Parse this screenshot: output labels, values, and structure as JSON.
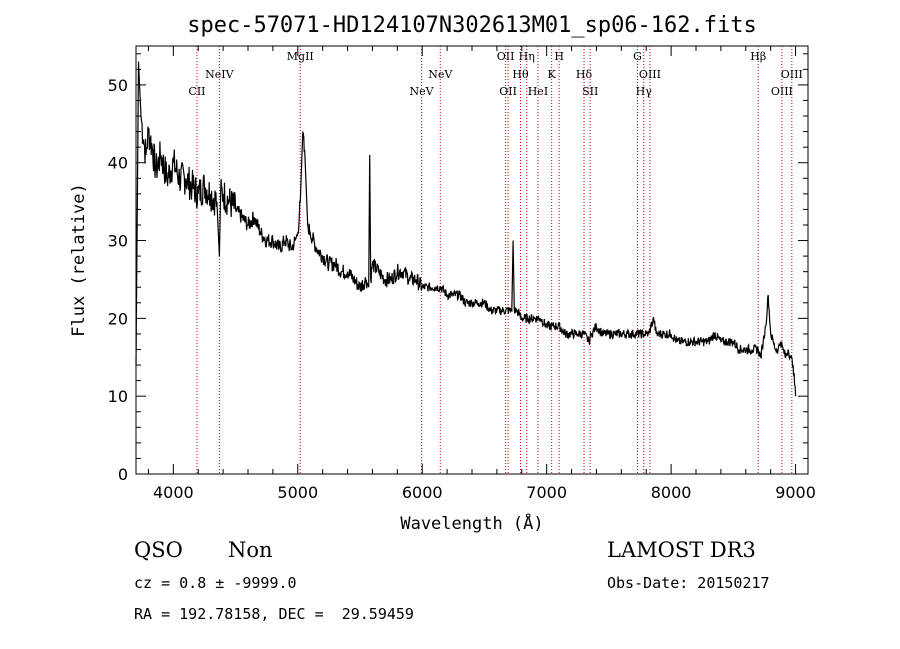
{
  "chart_data": {
    "type": "line",
    "title": "spec-57071-HD124107N302613M01_sp06-162.fits",
    "xlabel": "Wavelength (Å)",
    "ylabel": "Flux (relative)",
    "xlim": [
      3700,
      9100
    ],
    "ylim": [
      0,
      55
    ],
    "x_ticks": [
      4000,
      5000,
      6000,
      7000,
      8000,
      9000
    ],
    "y_ticks": [
      0,
      10,
      20,
      30,
      40,
      50
    ],
    "grid": false,
    "series": [
      {
        "color": "#000000",
        "x": [
          3700,
          3720,
          3740,
          3760,
          3780,
          3800,
          3830,
          3860,
          3900,
          3950,
          4000,
          4050,
          4100,
          4150,
          4200,
          4250,
          4300,
          4350,
          4370,
          4380,
          4400,
          4450,
          4500,
          4550,
          4600,
          4650,
          4700,
          4750,
          4800,
          4850,
          4900,
          4950,
          4980,
          5000,
          5020,
          5040,
          5060,
          5080,
          5100,
          5150,
          5200,
          5250,
          5300,
          5350,
          5400,
          5450,
          5500,
          5550,
          5570,
          5578,
          5586,
          5600,
          5650,
          5700,
          5750,
          5800,
          5850,
          5900,
          5950,
          6000,
          6050,
          6100,
          6150,
          6200,
          6250,
          6300,
          6350,
          6400,
          6450,
          6500,
          6550,
          6600,
          6650,
          6700,
          6720,
          6730,
          6740,
          6760,
          6800,
          6850,
          6900,
          6950,
          7000,
          7050,
          7100,
          7150,
          7200,
          7250,
          7300,
          7340,
          7360,
          7400,
          7450,
          7500,
          7550,
          7600,
          7650,
          7700,
          7750,
          7780,
          7800,
          7820,
          7840,
          7860,
          7880,
          7900,
          7950,
          8000,
          8050,
          8100,
          8150,
          8200,
          8250,
          8300,
          8350,
          8400,
          8450,
          8500,
          8550,
          8600,
          8650,
          8700,
          8720,
          8740,
          8760,
          8780,
          8800,
          8820,
          8840,
          8860,
          8880,
          8900,
          8920,
          8940,
          8960,
          8980,
          9000
        ],
        "y": [
          14,
          53,
          46,
          43,
          41,
          44,
          42,
          39,
          41,
          38,
          40,
          38,
          38,
          37,
          36,
          37,
          36,
          35,
          28,
          36,
          36,
          35,
          34,
          33,
          32,
          33,
          31,
          30,
          30,
          29,
          30,
          29,
          30,
          31,
          35,
          44,
          40,
          32,
          31,
          29,
          28,
          27,
          27,
          26,
          26,
          25,
          24,
          25,
          24,
          41,
          25,
          27,
          26,
          25,
          25,
          26,
          26,
          25,
          25,
          24,
          24,
          24,
          24,
          23,
          23,
          23,
          22,
          22,
          22,
          22,
          21,
          21,
          21,
          21,
          21,
          30,
          21,
          21,
          20,
          20,
          20,
          20,
          19,
          19,
          19,
          18,
          18,
          18,
          18,
          17,
          18,
          19,
          18,
          18,
          18,
          18,
          18,
          18,
          18,
          18,
          18,
          18,
          19,
          20,
          18,
          18,
          18,
          18,
          17,
          17,
          17,
          17,
          17,
          17,
          18,
          17,
          17,
          17,
          16,
          16,
          16,
          16,
          15,
          17,
          19,
          23,
          18,
          17,
          16,
          16,
          17,
          16,
          15,
          16,
          15,
          14,
          10
        ]
      }
    ],
    "line_markers": [
      {
        "name": "CII",
        "x": 4190,
        "row": 1
      },
      {
        "name": "NeIV",
        "x": 4370,
        "row": 0
      },
      {
        "name": "MgII",
        "x": 5020,
        "row": -1
      },
      {
        "name": "NeV",
        "x": 5995,
        "row": 1
      },
      {
        "name": "NeV",
        "x": 6145,
        "row": 0
      },
      {
        "name": "OII",
        "x": 6670,
        "row": -1
      },
      {
        "name": "OII",
        "x": 6690,
        "row": 1
      },
      {
        "name": "Hθ",
        "x": 6790,
        "row": 0
      },
      {
        "name": "Hη",
        "x": 6840,
        "row": -1
      },
      {
        "name": "HeI",
        "x": 6930,
        "row": 1
      },
      {
        "name": "K",
        "x": 7040,
        "row": 0
      },
      {
        "name": "H",
        "x": 7100,
        "row": -1
      },
      {
        "name": "Hδ",
        "x": 7300,
        "row": 0
      },
      {
        "name": "SII",
        "x": 7350,
        "row": 1
      },
      {
        "name": "G",
        "x": 7730,
        "row": -1
      },
      {
        "name": "Hγ",
        "x": 7780,
        "row": 1
      },
      {
        "name": "OIII",
        "x": 7830,
        "row": 0
      },
      {
        "name": "Hβ",
        "x": 8700,
        "row": -1
      },
      {
        "name": "OIII",
        "x": 8890,
        "row": 1
      },
      {
        "name": "OIII",
        "x": 8970,
        "row": 0
      }
    ],
    "marker_color": "#cc0000"
  },
  "info": {
    "class": "QSO",
    "subclass": "Non",
    "redshift": "cz = 0.8 ± -9999.0",
    "coords": "RA = 192.78158, DEC =  29.59459",
    "survey": "LAMOST DR3",
    "obs_date": "Obs-Date: 20150217"
  }
}
